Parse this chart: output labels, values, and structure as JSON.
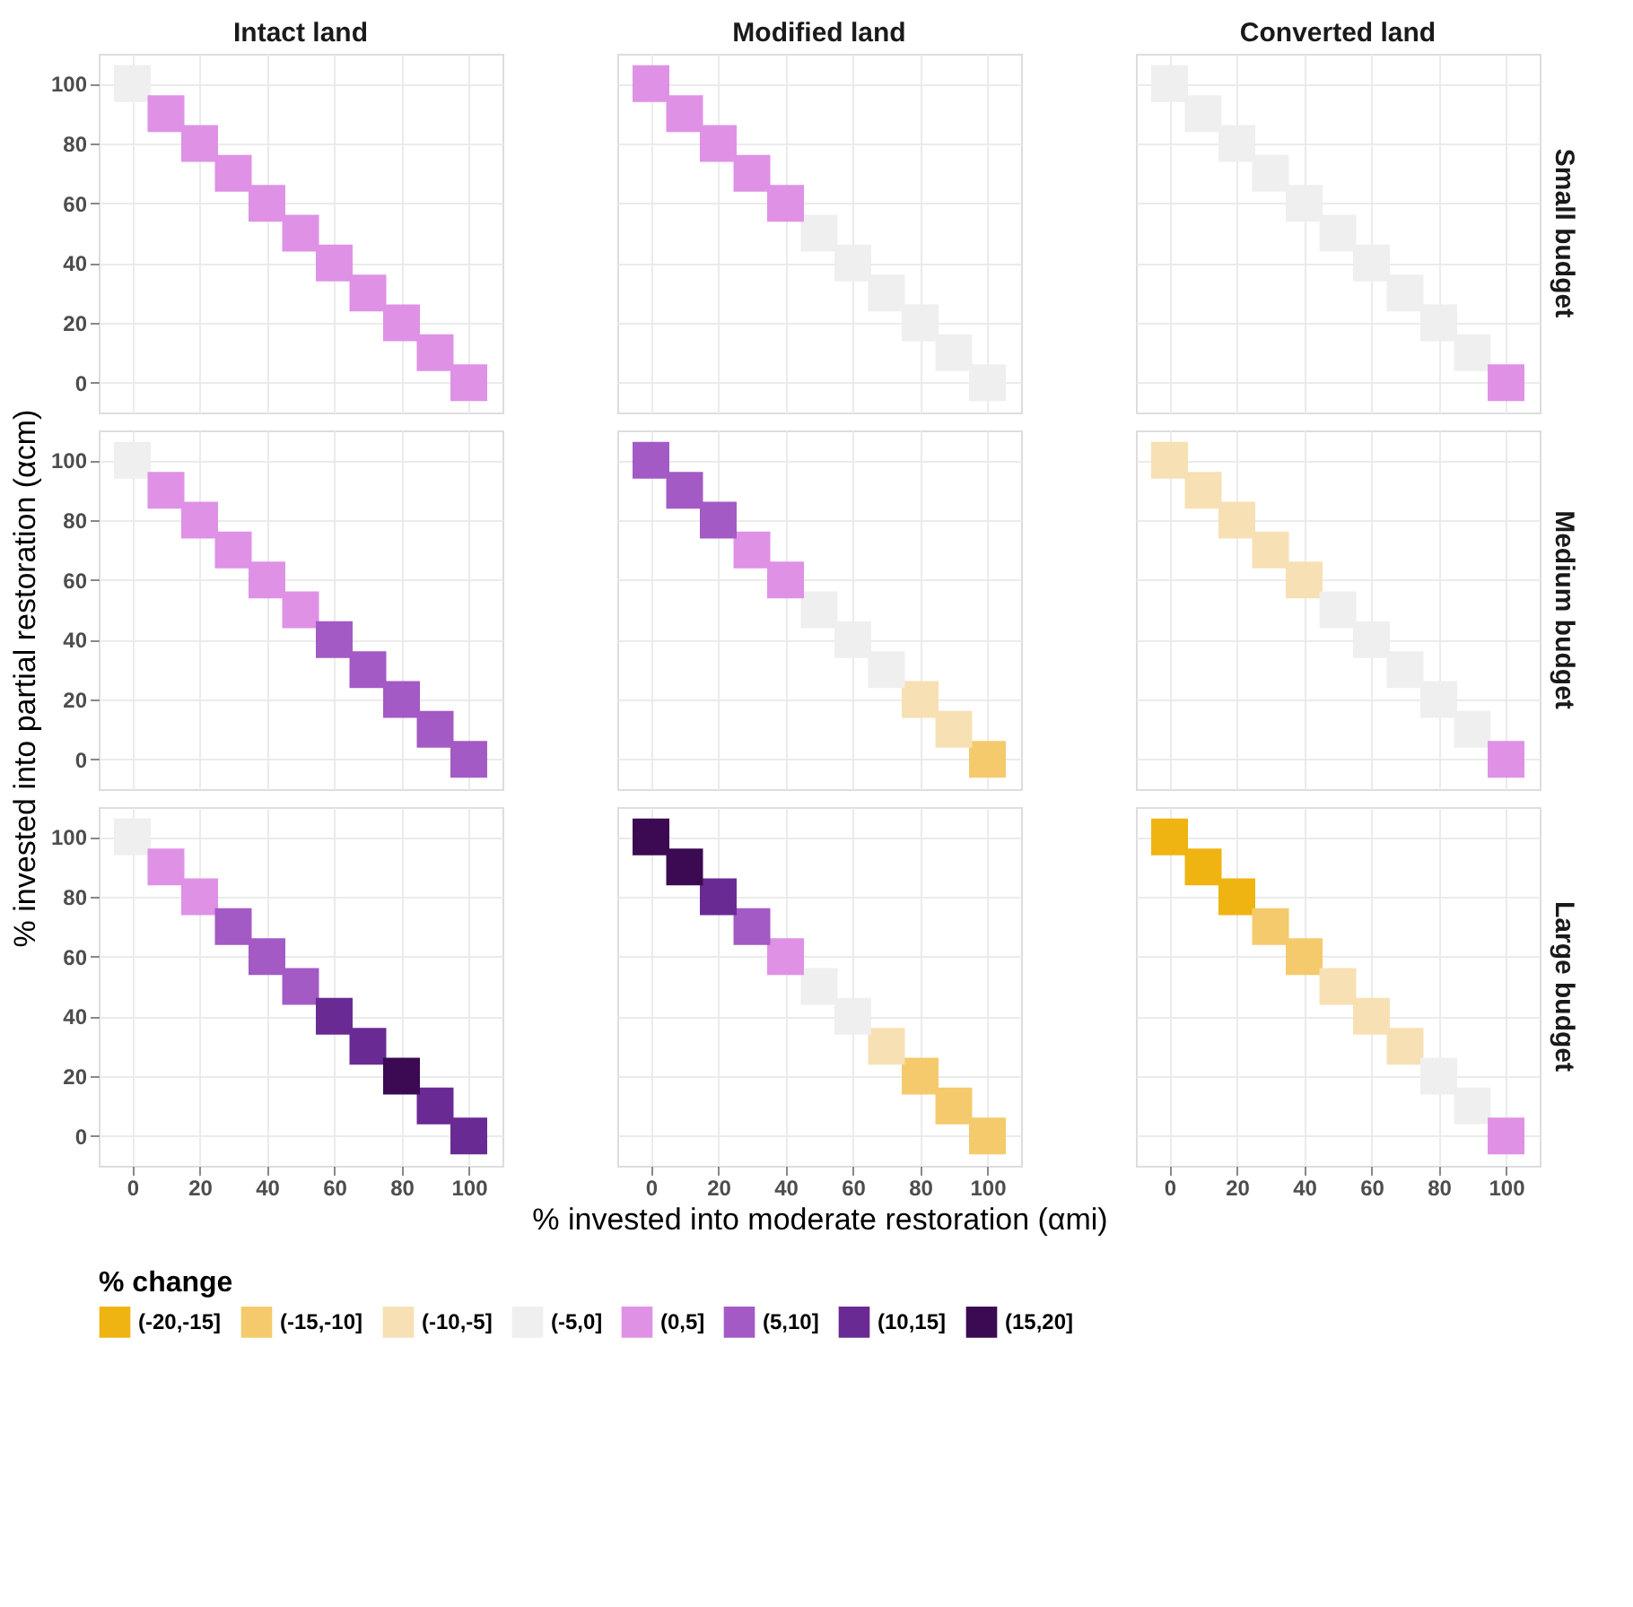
{
  "chart_data": [
    {
      "type": "scatter",
      "title": "Intact land",
      "xlim": [
        -10,
        110
      ],
      "ylim": [
        -10,
        110
      ],
      "xticks": [
        0,
        20,
        40,
        60,
        80,
        100
      ],
      "yticks": [
        0,
        20,
        40,
        60,
        80,
        100
      ],
      "marker": "square",
      "grid": true,
      "tick_labels": "y",
      "legend": "bottom",
      "legend_title": "% change",
      "series": [
        {
          "name": "(-5,0]",
          "color": "#efefef",
          "x": [
            0
          ],
          "values": [
            100
          ]
        },
        {
          "name": "(0,5]",
          "color": "#df91e6",
          "x": [
            10,
            20,
            30,
            40,
            50,
            60,
            70,
            80,
            90,
            100
          ],
          "values": [
            90,
            80,
            70,
            60,
            50,
            40,
            30,
            20,
            10,
            0
          ]
        }
      ]
    },
    {
      "type": "scatter",
      "title": "Modified land",
      "xlim": [
        -10,
        110
      ],
      "ylim": [
        -10,
        110
      ],
      "xticks": [
        0,
        20,
        40,
        60,
        80,
        100
      ],
      "yticks": [
        0,
        20,
        40,
        60,
        80,
        100
      ],
      "marker": "square",
      "grid": true,
      "tick_labels": false,
      "series": [
        {
          "name": "(-5,0]",
          "color": "#efefef",
          "x": [
            50,
            60,
            70,
            80,
            90,
            100
          ],
          "values": [
            50,
            40,
            30,
            20,
            10,
            0
          ]
        },
        {
          "name": "(0,5]",
          "color": "#df91e6",
          "x": [
            0,
            10,
            20,
            30,
            40
          ],
          "values": [
            100,
            90,
            80,
            70,
            60
          ]
        }
      ]
    },
    {
      "type": "scatter",
      "title": "Converted land",
      "y2label": "Small budget",
      "xlim": [
        -10,
        110
      ],
      "ylim": [
        -10,
        110
      ],
      "xticks": [
        0,
        20,
        40,
        60,
        80,
        100
      ],
      "yticks": [
        0,
        20,
        40,
        60,
        80,
        100
      ],
      "marker": "square",
      "grid": true,
      "tick_labels": false,
      "series": [
        {
          "name": "(-5,0]",
          "color": "#efefef",
          "x": [
            0,
            10,
            20,
            30,
            40,
            50,
            60,
            70,
            80,
            90
          ],
          "values": [
            100,
            90,
            80,
            70,
            60,
            50,
            40,
            30,
            20,
            10
          ]
        },
        {
          "name": "(0,5]",
          "color": "#df91e6",
          "x": [
            100
          ],
          "values": [
            0
          ]
        }
      ]
    },
    {
      "type": "scatter",
      "ylabel": "% invested into partial restoration (αcm)",
      "xlim": [
        -10,
        110
      ],
      "ylim": [
        -10,
        110
      ],
      "xticks": [
        0,
        20,
        40,
        60,
        80,
        100
      ],
      "yticks": [
        0,
        20,
        40,
        60,
        80,
        100
      ],
      "marker": "square",
      "grid": true,
      "tick_labels": "y",
      "series": [
        {
          "name": "(-5,0]",
          "color": "#efefef",
          "x": [
            0
          ],
          "values": [
            100
          ]
        },
        {
          "name": "(0,5]",
          "color": "#df91e6",
          "x": [
            10,
            20,
            30,
            40,
            50
          ],
          "values": [
            90,
            80,
            70,
            60,
            50
          ]
        },
        {
          "name": "(5,10]",
          "color": "#a35ac4",
          "x": [
            60,
            70,
            80,
            90,
            100
          ],
          "values": [
            40,
            30,
            20,
            10,
            0
          ]
        }
      ]
    },
    {
      "type": "scatter",
      "xlim": [
        -10,
        110
      ],
      "ylim": [
        -10,
        110
      ],
      "xticks": [
        0,
        20,
        40,
        60,
        80,
        100
      ],
      "yticks": [
        0,
        20,
        40,
        60,
        80,
        100
      ],
      "marker": "square",
      "grid": true,
      "tick_labels": false,
      "legend": "bottom",
      "series": [
        {
          "name": "(-15,-10]",
          "color": "#f5ca6c",
          "x": [
            100
          ],
          "values": [
            0
          ]
        },
        {
          "name": "(-10,-5]",
          "color": "#f7e0b3",
          "x": [
            80,
            90
          ],
          "values": [
            20,
            10
          ]
        },
        {
          "name": "(-5,0]",
          "color": "#efefef",
          "x": [
            50,
            60,
            70
          ],
          "values": [
            50,
            40,
            30
          ]
        },
        {
          "name": "(0,5]",
          "color": "#df91e6",
          "x": [
            30,
            40
          ],
          "values": [
            70,
            60
          ]
        },
        {
          "name": "(5,10]",
          "color": "#a35ac4",
          "x": [
            0,
            10,
            20
          ],
          "values": [
            100,
            90,
            80
          ]
        }
      ]
    },
    {
      "type": "scatter",
      "y2label": "Medium budget",
      "xlim": [
        -10,
        110
      ],
      "ylim": [
        -10,
        110
      ],
      "xticks": [
        0,
        20,
        40,
        60,
        80,
        100
      ],
      "yticks": [
        0,
        20,
        40,
        60,
        80,
        100
      ],
      "marker": "square",
      "grid": true,
      "tick_labels": false,
      "series": [
        {
          "name": "(-10,-5]",
          "color": "#f7e0b3",
          "x": [
            0,
            10,
            20,
            30,
            40
          ],
          "values": [
            100,
            90,
            80,
            70,
            60
          ]
        },
        {
          "name": "(-5,0]",
          "color": "#efefef",
          "x": [
            50,
            60,
            70,
            80,
            90
          ],
          "values": [
            50,
            40,
            30,
            20,
            10
          ]
        },
        {
          "name": "(0,5]",
          "color": "#df91e6",
          "x": [
            100
          ],
          "values": [
            0
          ]
        }
      ]
    },
    {
      "type": "scatter",
      "xlim": [
        -10,
        110
      ],
      "ylim": [
        -10,
        110
      ],
      "xticks": [
        0,
        20,
        40,
        60,
        80,
        100
      ],
      "yticks": [
        0,
        20,
        40,
        60,
        80,
        100
      ],
      "marker": "square",
      "grid": true,
      "legend": "bottom",
      "series": [
        {
          "name": "(-5,0]",
          "color": "#efefef",
          "x": [
            0
          ],
          "values": [
            100
          ]
        },
        {
          "name": "(0,5]",
          "color": "#df91e6",
          "x": [
            10,
            20
          ],
          "values": [
            90,
            80
          ]
        },
        {
          "name": "(5,10]",
          "color": "#a35ac4",
          "x": [
            30,
            40,
            50
          ],
          "values": [
            70,
            60,
            50
          ]
        },
        {
          "name": "(10,15]",
          "color": "#6a2a94",
          "x": [
            60,
            70,
            90,
            100
          ],
          "values": [
            40,
            30,
            10,
            0
          ]
        },
        {
          "name": "(15,20]",
          "color": "#3b0a52",
          "x": [
            80
          ],
          "values": [
            20
          ]
        }
      ]
    },
    {
      "type": "scatter",
      "xlabel": "% invested into moderate restoration (αmi)",
      "xlim": [
        -10,
        110
      ],
      "ylim": [
        -10,
        110
      ],
      "xticks": [
        0,
        20,
        40,
        60,
        80,
        100
      ],
      "yticks": [
        0,
        20,
        40,
        60,
        80,
        100
      ],
      "marker": "square",
      "grid": true,
      "tick_labels": "x",
      "series": [
        {
          "name": "(-15,-10]",
          "color": "#f5ca6c",
          "x": [
            80,
            90,
            100
          ],
          "values": [
            20,
            10,
            0
          ]
        },
        {
          "name": "(-10,-5]",
          "color": "#f7e0b3",
          "x": [
            70
          ],
          "values": [
            30
          ]
        },
        {
          "name": "(-5,0]",
          "color": "#efefef",
          "x": [
            50,
            60
          ],
          "values": [
            50,
            40
          ]
        },
        {
          "name": "(0,5]",
          "color": "#df91e6",
          "x": [
            40
          ],
          "values": [
            60
          ]
        },
        {
          "name": "(5,10]",
          "color": "#a35ac4",
          "x": [
            30
          ],
          "values": [
            70
          ]
        },
        {
          "name": "(10,15]",
          "color": "#6a2a94",
          "x": [
            20
          ],
          "values": [
            80
          ]
        },
        {
          "name": "(15,20]",
          "color": "#3b0a52",
          "x": [
            0,
            10
          ],
          "values": [
            100,
            90
          ]
        }
      ]
    },
    {
      "type": "scatter",
      "y2label": "Large budget",
      "xlim": [
        -10,
        110
      ],
      "ylim": [
        -10,
        110
      ],
      "xticks": [
        0,
        20,
        40,
        60,
        80,
        100
      ],
      "yticks": [
        0,
        20,
        40,
        60,
        80,
        100
      ],
      "marker": "square",
      "grid": true,
      "tick_labels": "x",
      "series": [
        {
          "name": "(-20,-15]",
          "color": "#efb312",
          "x": [
            0,
            10,
            20
          ],
          "values": [
            100,
            90,
            80
          ]
        },
        {
          "name": "(-15,-10]",
          "color": "#f5ca6c",
          "x": [
            30,
            40
          ],
          "values": [
            70,
            60
          ]
        },
        {
          "name": "(-10,-5]",
          "color": "#f7e0b3",
          "x": [
            50,
            60,
            70
          ],
          "values": [
            50,
            40,
            30
          ]
        },
        {
          "name": "(-5,0]",
          "color": "#efefef",
          "x": [
            80,
            90
          ],
          "values": [
            20,
            10
          ]
        },
        {
          "name": "(0,5]",
          "color": "#df91e6",
          "x": [
            100
          ],
          "values": [
            0
          ]
        }
      ]
    }
  ]
}
